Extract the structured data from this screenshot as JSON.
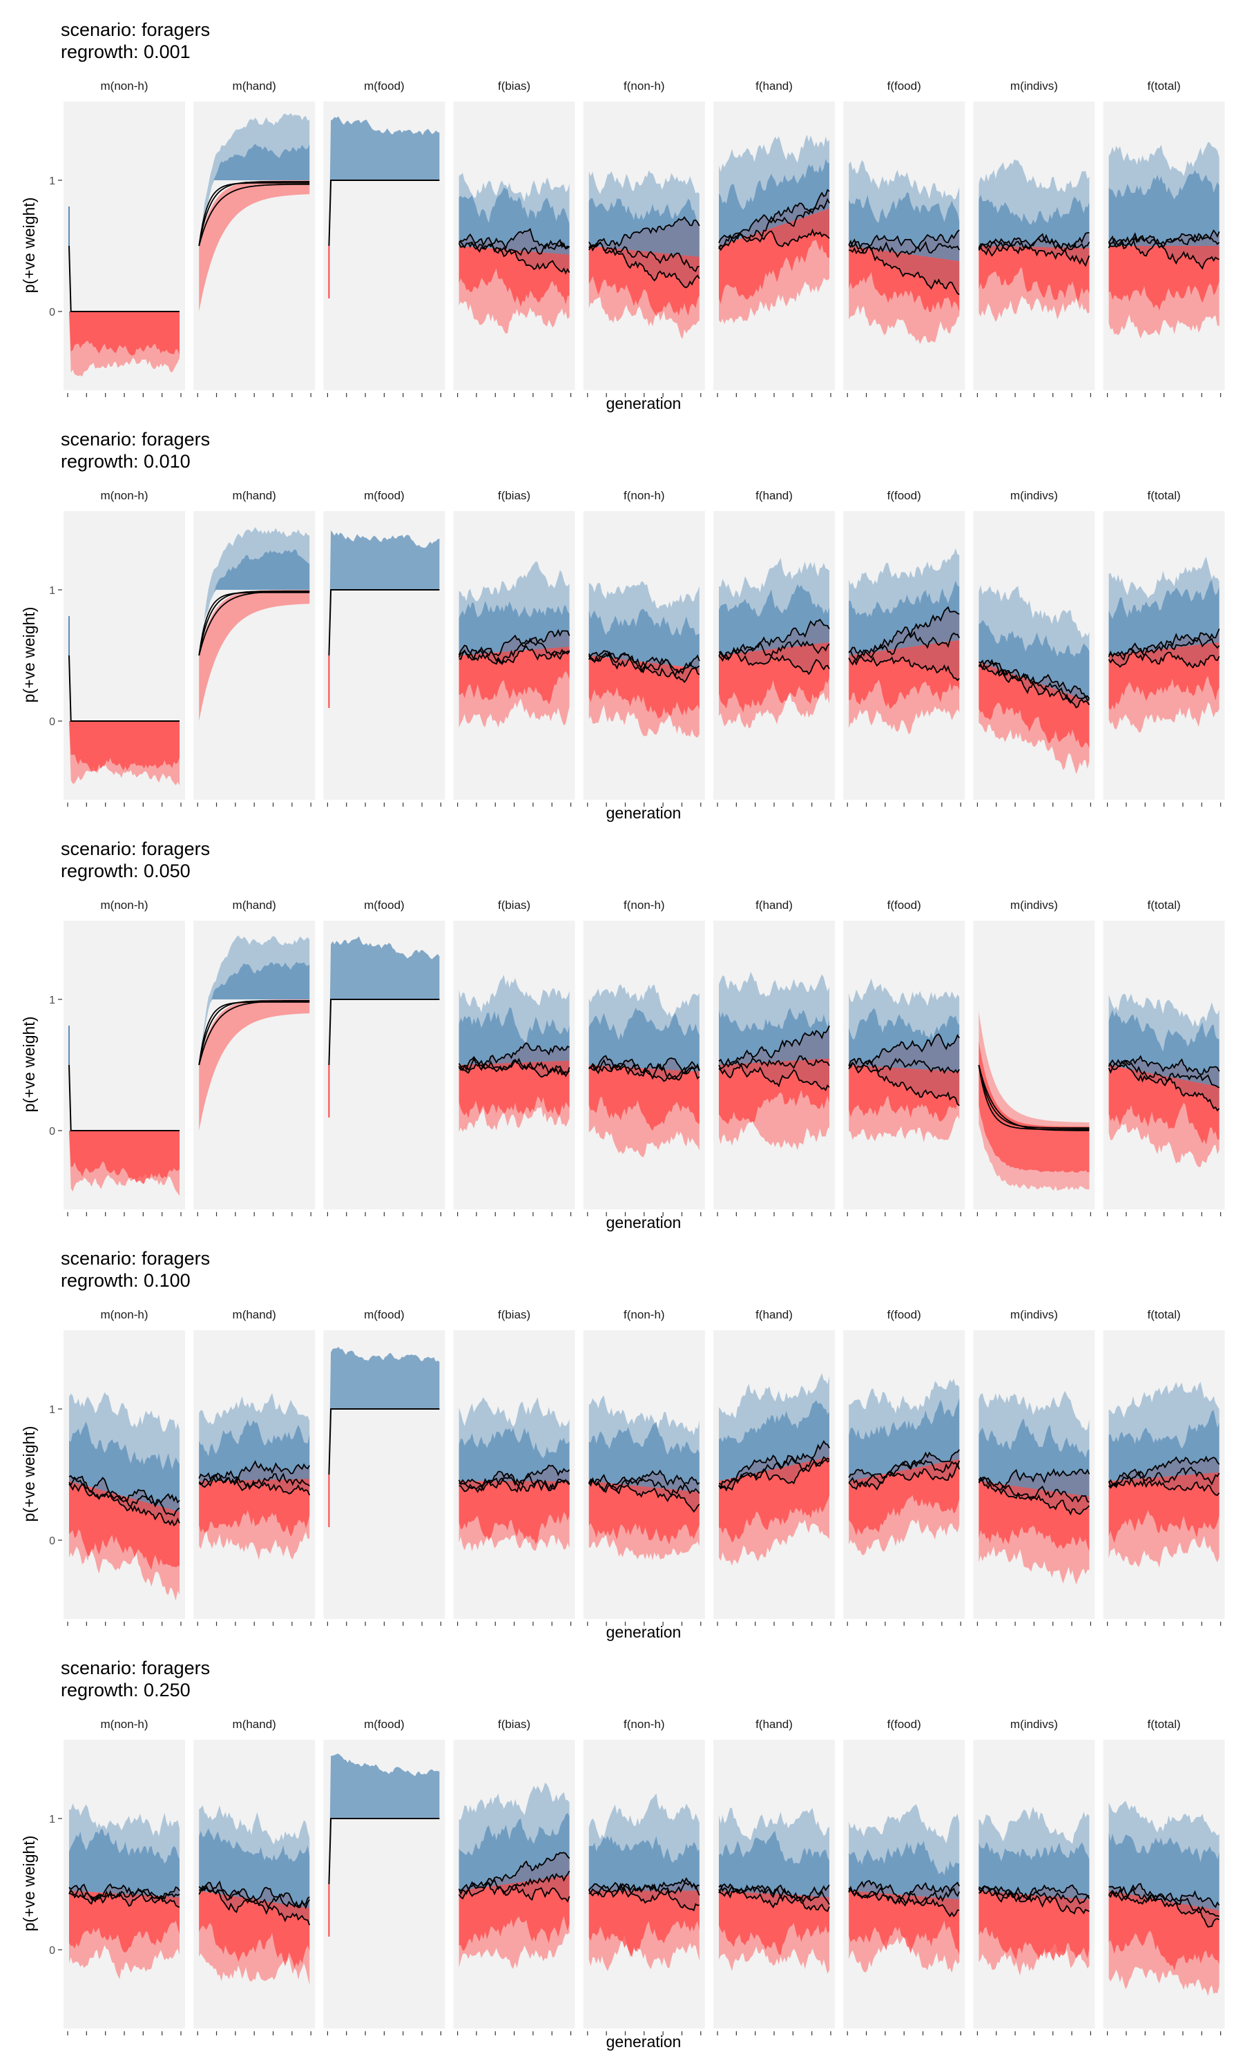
{
  "figure": {
    "ylabel": "p(+ve weight)",
    "xlabel": "generation",
    "yticks": [
      0,
      1
    ],
    "colors": {
      "blue": "#5b8db8",
      "red": "#ff4545",
      "panel_bg": "#f2f2f2",
      "line": "#000000"
    }
  },
  "chart_data": {
    "type": "area",
    "ylim": [
      -0.6,
      1.6
    ],
    "xlim": [
      0,
      1
    ],
    "grid": false,
    "facets": [
      "m(non-h)",
      "m(hand)",
      "m(food)",
      "f(bias)",
      "f(non-h)",
      "f(hand)",
      "f(food)",
      "m(indivs)",
      "f(total)"
    ],
    "rows": [
      {
        "title": "scenario: foragers",
        "subtitle": "regrowth: 0.001",
        "panels": [
          {
            "kind": "zero"
          },
          {
            "kind": "rise",
            "lines": [
              0.97,
              0.99,
              0.98
            ]
          },
          {
            "kind": "food"
          },
          {
            "kind": "noisy",
            "start": 0.5,
            "lines": [
              0.45,
              0.3,
              0.55
            ],
            "spread": 0.35
          },
          {
            "kind": "noisy",
            "start": 0.5,
            "lines": [
              0.7,
              0.2,
              0.35
            ],
            "spread": 0.38
          },
          {
            "kind": "noisy",
            "start": 0.5,
            "lines": [
              0.9,
              0.6,
              0.85
            ],
            "spread": 0.4
          },
          {
            "kind": "noisy",
            "start": 0.5,
            "lines": [
              0.55,
              0.15,
              0.45
            ],
            "spread": 0.38
          },
          {
            "kind": "noisy",
            "start": 0.5,
            "lines": [
              0.55,
              0.4,
              0.5
            ],
            "spread": 0.35
          },
          {
            "kind": "noisy",
            "start": 0.5,
            "lines": [
              0.6,
              0.35,
              0.55
            ],
            "spread": 0.45
          }
        ]
      },
      {
        "title": "scenario: foragers",
        "subtitle": "regrowth: 0.010",
        "panels": [
          {
            "kind": "zero"
          },
          {
            "kind": "rise",
            "lines": [
              0.99,
              0.99,
              0.98
            ]
          },
          {
            "kind": "food"
          },
          {
            "kind": "noisy",
            "start": 0.5,
            "lines": [
              0.65,
              0.55,
              0.5
            ],
            "spread": 0.35
          },
          {
            "kind": "noisy",
            "start": 0.5,
            "lines": [
              0.45,
              0.4,
              0.35
            ],
            "spread": 0.33
          },
          {
            "kind": "noisy",
            "start": 0.5,
            "lines": [
              0.75,
              0.45,
              0.6
            ],
            "spread": 0.36
          },
          {
            "kind": "noisy",
            "start": 0.5,
            "lines": [
              0.85,
              0.35,
              0.65
            ],
            "spread": 0.4
          },
          {
            "kind": "noisy",
            "start": 0.45,
            "lines": [
              0.15,
              0.1,
              0.2
            ],
            "spread": 0.35
          },
          {
            "kind": "noisy",
            "start": 0.5,
            "lines": [
              0.7,
              0.5,
              0.6
            ],
            "spread": 0.38
          }
        ]
      },
      {
        "title": "scenario: foragers",
        "subtitle": "regrowth: 0.050",
        "panels": [
          {
            "kind": "zero"
          },
          {
            "kind": "rise",
            "lines": [
              0.99,
              0.99,
              0.98
            ]
          },
          {
            "kind": "food"
          },
          {
            "kind": "noisy",
            "start": 0.5,
            "lines": [
              0.65,
              0.5,
              0.45
            ],
            "spread": 0.35
          },
          {
            "kind": "noisy",
            "start": 0.5,
            "lines": [
              0.5,
              0.4,
              0.45
            ],
            "spread": 0.35
          },
          {
            "kind": "noisy",
            "start": 0.5,
            "lines": [
              0.75,
              0.35,
              0.55
            ],
            "spread": 0.4
          },
          {
            "kind": "noisy",
            "start": 0.5,
            "lines": [
              0.7,
              0.2,
              0.45
            ],
            "spread": 0.36
          },
          {
            "kind": "decay",
            "lines": [
              0.0,
              0.02,
              0.01
            ]
          },
          {
            "kind": "noisy",
            "start": 0.5,
            "lines": [
              0.45,
              0.2,
              0.35
            ],
            "spread": 0.38
          }
        ]
      },
      {
        "title": "scenario: foragers",
        "subtitle": "regrowth: 0.100",
        "panels": [
          {
            "kind": "noisy",
            "start": 0.45,
            "lines": [
              0.3,
              0.15,
              0.2
            ],
            "spread": 0.4
          },
          {
            "kind": "noisy",
            "start": 0.45,
            "lines": [
              0.6,
              0.35,
              0.45
            ],
            "spread": 0.36
          },
          {
            "kind": "food"
          },
          {
            "kind": "noisy",
            "start": 0.45,
            "lines": [
              0.5,
              0.4,
              0.45
            ],
            "spread": 0.36
          },
          {
            "kind": "noisy",
            "start": 0.45,
            "lines": [
              0.45,
              0.25,
              0.4
            ],
            "spread": 0.36
          },
          {
            "kind": "noisy",
            "start": 0.45,
            "lines": [
              0.75,
              0.55,
              0.6
            ],
            "spread": 0.4
          },
          {
            "kind": "noisy",
            "start": 0.45,
            "lines": [
              0.7,
              0.55,
              0.6
            ],
            "spread": 0.38
          },
          {
            "kind": "noisy",
            "start": 0.45,
            "lines": [
              0.5,
              0.2,
              0.3
            ],
            "spread": 0.42
          },
          {
            "kind": "noisy",
            "start": 0.45,
            "lines": [
              0.65,
              0.4,
              0.5
            ],
            "spread": 0.4
          }
        ]
      },
      {
        "title": "scenario: foragers",
        "subtitle": "regrowth: 0.250",
        "panels": [
          {
            "kind": "noisy",
            "start": 0.45,
            "lines": [
              0.45,
              0.35,
              0.4
            ],
            "spread": 0.38
          },
          {
            "kind": "noisy",
            "start": 0.45,
            "lines": [
              0.4,
              0.2,
              0.35
            ],
            "spread": 0.4
          },
          {
            "kind": "food"
          },
          {
            "kind": "noisy",
            "start": 0.45,
            "lines": [
              0.7,
              0.45,
              0.55
            ],
            "spread": 0.4
          },
          {
            "kind": "noisy",
            "start": 0.45,
            "lines": [
              0.5,
              0.4,
              0.45
            ],
            "spread": 0.36
          },
          {
            "kind": "noisy",
            "start": 0.45,
            "lines": [
              0.45,
              0.35,
              0.4
            ],
            "spread": 0.36
          },
          {
            "kind": "noisy",
            "start": 0.45,
            "lines": [
              0.45,
              0.3,
              0.4
            ],
            "spread": 0.36
          },
          {
            "kind": "noisy",
            "start": 0.45,
            "lines": [
              0.45,
              0.3,
              0.4
            ],
            "spread": 0.38
          },
          {
            "kind": "noisy",
            "start": 0.45,
            "lines": [
              0.4,
              0.2,
              0.3
            ],
            "spread": 0.45
          }
        ]
      }
    ]
  }
}
